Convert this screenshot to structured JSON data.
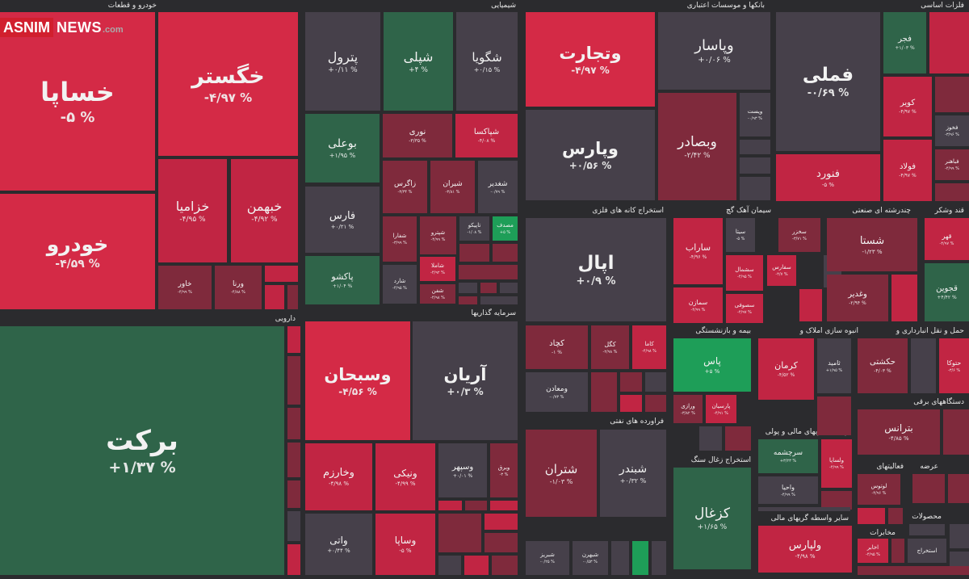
{
  "watermark": {
    "part1": "ASNIM",
    "part2": "NEWS",
    "part3": ".com"
  },
  "colors": {
    "strong_red": "#d42a46",
    "red": "#c12543",
    "dark_red": "#7f2a3c",
    "neutral": "#46404a",
    "dark_green": "#2f6449",
    "green": "#1e9e58",
    "header_text": "#e8e8e8"
  },
  "chart_data": {
    "type": "heatmap",
    "subtype": "treemap",
    "sectors": [
      "خودرو و قطعات",
      "شیمیایی",
      "بانکها و موسسات اعتباری",
      "فلزات اساسی",
      "دارویی",
      "سرمایه گذاریها",
      "استخراج کانه های فلزی",
      "سیمان آهک گچ",
      "چندرشته ای صنعتی",
      "قند وشکر",
      "فراورده های نفتی",
      "بیمه و بازنشستگی",
      "انبوه سازی املاک و",
      "حمل و نقل انبارداری و",
      "دستگاههای برقی",
      "واسطه گریهای مالی و پولی",
      "استخراج زغال سنگ",
      "فعالیتهای",
      "عرضه",
      "سایر واسطه گریهای مالی",
      "محصولات",
      "مخابرات"
    ],
    "tiles": [
      {
        "name": "خساپا",
        "change": "-۵ %",
        "c": "strong_red"
      },
      {
        "name": "خگستر",
        "change": "-۴/۹۷ %",
        "c": "strong_red"
      },
      {
        "name": "خودرو",
        "change": "-۴/۵۹ %",
        "c": "strong_red"
      },
      {
        "name": "خزامیا",
        "change": "-۴/۹۵ %",
        "c": "red"
      },
      {
        "name": "خبهمن",
        "change": "-۴/۹۲ %",
        "c": "red"
      },
      {
        "name": "خاور",
        "change": "-۴/۹۹ %",
        "c": "dark_red"
      },
      {
        "name": "ورنا",
        "change": "-۴/۸۸ %",
        "c": "dark_red"
      },
      {
        "name": "پترول",
        "change": "+۰/۱۱ %",
        "c": "neutral"
      },
      {
        "name": "شپلی",
        "change": "+۴ %",
        "c": "dark_green"
      },
      {
        "name": "شگویا",
        "change": "+۰/۱۵ %",
        "c": "neutral"
      },
      {
        "name": "بوعلی",
        "change": "+۱/۹۵ %",
        "c": "dark_green"
      },
      {
        "name": "نوری",
        "change": "-۳/۳۵ %",
        "c": "dark_red"
      },
      {
        "name": "شپاکسا",
        "change": "-۴/۰۸ %",
        "c": "red"
      },
      {
        "name": "فارس",
        "change": "+۰/۲۱ %",
        "c": "neutral"
      },
      {
        "name": "زاگرس",
        "change": "-۳/۳۴ %",
        "c": "dark_red"
      },
      {
        "name": "شیران",
        "change": "-۳/۸۱ %",
        "c": "dark_red"
      },
      {
        "name": "شغدیر",
        "change": "-۰/۷۹ %",
        "c": "neutral"
      },
      {
        "name": "شفارا",
        "change": "-۳/۹۹ %",
        "c": "dark_red"
      },
      {
        "name": "شپترو",
        "change": "-۴/۹۹ %",
        "c": "dark_red"
      },
      {
        "name": "تاپیکو",
        "change": "-۱/۰۸ %",
        "c": "neutral"
      },
      {
        "name": "مصدف",
        "change": "+۵ %",
        "c": "green"
      },
      {
        "name": "پاکشو",
        "change": "+۱/۰۴ %",
        "c": "dark_green"
      },
      {
        "name": "شاملا",
        "change": "-۴/۹۲ %",
        "c": "red"
      },
      {
        "name": "شارد",
        "change": "-۴/۹۵ %",
        "c": "neutral"
      },
      {
        "name": "شفن",
        "change": "-۴/۹۸ %",
        "c": "dark_red"
      },
      {
        "name": "وتجارت",
        "change": "-۴/۹۷ %",
        "c": "strong_red"
      },
      {
        "name": "وپاسار",
        "change": "+۰/۰۶ %",
        "c": "neutral"
      },
      {
        "name": "وپارس",
        "change": "+۰/۵۶ %",
        "c": "neutral"
      },
      {
        "name": "وبصادر",
        "change": "-۲/۴۲ %",
        "c": "dark_red"
      },
      {
        "name": "ویست",
        "change": "-۰/۹۳ %",
        "c": "neutral"
      },
      {
        "name": "فملی",
        "change": "-۰/۶۹ %",
        "c": "neutral"
      },
      {
        "name": "فجر",
        "change": "+۱/۰۳ %",
        "c": "dark_green"
      },
      {
        "name": "کویر",
        "change": "-۴/۹۷ %",
        "c": "red"
      },
      {
        "name": "فولاد",
        "change": "-۴/۹۷ %",
        "c": "red"
      },
      {
        "name": "فنورد",
        "change": "-۵ %",
        "c": "red"
      },
      {
        "name": "فخوز",
        "change": "-۳/۹۶ %",
        "c": "neutral"
      },
      {
        "name": "فباهنر",
        "change": "-۴/۹۹ %",
        "c": "dark_red"
      },
      {
        "name": "برکت",
        "change": "+۱/۳۷ %",
        "c": "dark_green"
      },
      {
        "name": "وسبحان",
        "change": "-۴/۵۶ %",
        "c": "strong_red"
      },
      {
        "name": "آریان",
        "change": "+۰/۳ %",
        "c": "neutral"
      },
      {
        "name": "وخارزم",
        "change": "-۴/۹۸ %",
        "c": "red"
      },
      {
        "name": "ونیکی",
        "change": "-۴/۹۹ %",
        "c": "red"
      },
      {
        "name": "وسپهر",
        "change": "+۰/۰۱ %",
        "c": "neutral"
      },
      {
        "name": "وبرق",
        "change": "-۳ %",
        "c": "dark_red"
      },
      {
        "name": "واتی",
        "change": "+۰/۴۴ %",
        "c": "neutral"
      },
      {
        "name": "وساپا",
        "change": "-۵ %",
        "c": "red"
      },
      {
        "name": "اپال",
        "change": "+۰/۹ %",
        "c": "neutral"
      },
      {
        "name": "کچاد",
        "change": "-۱ %",
        "c": "dark_red"
      },
      {
        "name": "کگل",
        "change": "-۲/۹۸ %",
        "c": "dark_red"
      },
      {
        "name": "کاما",
        "change": "-۴/۹۸ %",
        "c": "red"
      },
      {
        "name": "ومعادن",
        "change": "-۰/۷۳ %",
        "c": "neutral"
      },
      {
        "name": "شتران",
        "change": "-۱/۰۳ %",
        "c": "dark_red"
      },
      {
        "name": "شبندر",
        "change": "+۰/۳۲ %",
        "c": "neutral"
      },
      {
        "name": "شبریز",
        "change": "-۰/۲۵ %",
        "c": "neutral"
      },
      {
        "name": "شبهرن",
        "change": "-۰/۵۳ %",
        "c": "neutral"
      },
      {
        "name": "ساراب",
        "change": "-۴/۹۶ %",
        "c": "red"
      },
      {
        "name": "سیتا",
        "change": "-۵ %",
        "c": "neutral"
      },
      {
        "name": "سخزر",
        "change": "-۳/۷۱ %",
        "c": "dark_red"
      },
      {
        "name": "سشمال",
        "change": "-۴/۹۵ %",
        "c": "red"
      },
      {
        "name": "سفارس",
        "change": "-۴/۷ %",
        "c": "red"
      },
      {
        "name": "سمازن",
        "change": "-۴/۹۹ %",
        "c": "red"
      },
      {
        "name": "سصوفی",
        "change": "-۴/۹۷ %",
        "c": "red"
      },
      {
        "name": "شستا",
        "change": "-۱/۲۳ %",
        "c": "dark_red"
      },
      {
        "name": "وغدیر",
        "change": "-۲/۹۴ %",
        "c": "dark_red"
      },
      {
        "name": "قهر",
        "change": "-۴/۹۷ %",
        "c": "red"
      },
      {
        "name": "قجوین",
        "change": "+۴/۴۲ %",
        "c": "dark_green"
      },
      {
        "name": "پاس",
        "change": "+۵ %",
        "c": "green"
      },
      {
        "name": "پارسیان",
        "change": "-۴/۹۱ %",
        "c": "red"
      },
      {
        "name": "ورازی",
        "change": "-۳/۸۲ %",
        "c": "dark_red"
      },
      {
        "name": "کرمان",
        "change": "-۴/۵۲ %",
        "c": "red"
      },
      {
        "name": "ثامید",
        "change": "+۱/۹۵ %",
        "c": "neutral"
      },
      {
        "name": "حکشتی",
        "change": "-۴/۰۳ %",
        "c": "dark_red"
      },
      {
        "name": "حتوکا",
        "change": "-۳/۶ %",
        "c": "red"
      },
      {
        "name": "بترانس",
        "change": "-۴/۸۵ %",
        "c": "dark_red"
      },
      {
        "name": "سرچشمه",
        "change": "+۳/۲۳ %",
        "c": "dark_green"
      },
      {
        "name": "ولساپا",
        "change": "-۴/۹۹ %",
        "c": "red"
      },
      {
        "name": "واحیا",
        "change": "-۴/۹۹ %",
        "c": "neutral"
      },
      {
        "name": "کزغال",
        "change": "+۱/۶۵ %",
        "c": "dark_green"
      },
      {
        "name": "ولپارس",
        "change": "-۴/۹۸ %",
        "c": "red"
      },
      {
        "name": "لوتوس",
        "change": "-۴/۹۶ %",
        "c": "dark_red"
      },
      {
        "name": "اخابر",
        "change": "-۴/۹۵ %",
        "c": "red"
      },
      {
        "name": "استخراج",
        "change": "",
        "c": "neutral"
      }
    ]
  }
}
